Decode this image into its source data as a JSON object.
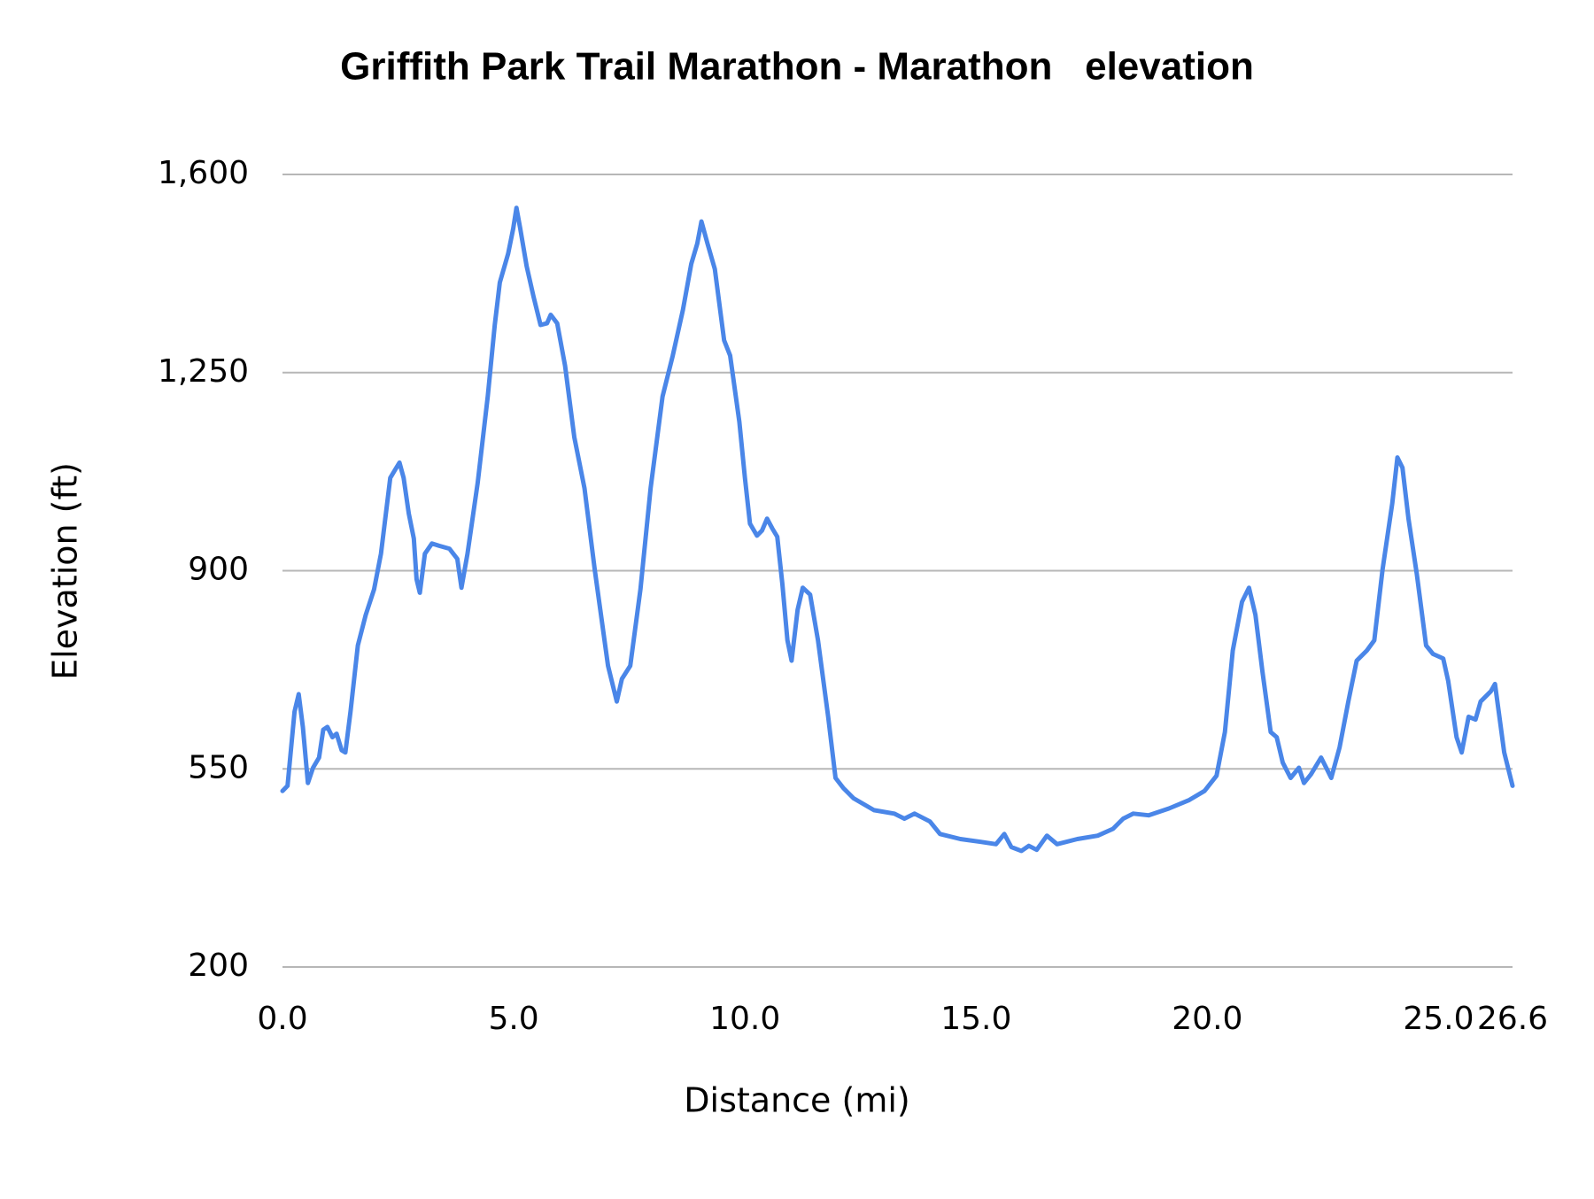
{
  "chart_data": {
    "type": "line",
    "title": "Griffith Park Trail Marathon - Marathon   elevation",
    "x_label": "Distance (mi)",
    "y_label": "Elevation (ft)",
    "x": [
      0.0,
      0.11,
      0.26,
      0.35,
      0.44,
      0.55,
      0.66,
      0.79,
      0.88,
      0.97,
      1.08,
      1.17,
      1.28,
      1.36,
      1.47,
      1.63,
      1.8,
      1.98,
      2.13,
      2.33,
      2.44,
      2.53,
      2.62,
      2.73,
      2.84,
      2.9,
      2.97,
      3.08,
      3.23,
      3.39,
      3.61,
      3.78,
      3.87,
      4.0,
      4.22,
      4.44,
      4.59,
      4.7,
      4.88,
      4.99,
      5.06,
      5.14,
      5.28,
      5.43,
      5.58,
      5.72,
      5.8,
      5.94,
      6.11,
      6.31,
      6.53,
      6.75,
      7.04,
      7.23,
      7.34,
      7.52,
      7.74,
      7.96,
      8.22,
      8.44,
      8.66,
      8.84,
      8.97,
      9.06,
      9.19,
      9.35,
      9.55,
      9.68,
      9.88,
      10.0,
      10.11,
      10.26,
      10.37,
      10.48,
      10.59,
      10.7,
      10.81,
      10.92,
      11.01,
      11.14,
      11.25,
      11.41,
      11.58,
      11.8,
      11.96,
      12.13,
      12.35,
      12.79,
      13.23,
      13.45,
      13.67,
      14.0,
      14.22,
      14.66,
      15.1,
      15.43,
      15.61,
      15.76,
      15.98,
      16.14,
      16.31,
      16.53,
      16.75,
      17.19,
      17.63,
      17.96,
      18.18,
      18.4,
      18.73,
      19.17,
      19.61,
      19.94,
      20.2,
      20.38,
      20.55,
      20.75,
      20.9,
      21.04,
      21.19,
      21.37,
      21.5,
      21.63,
      21.8,
      21.98,
      22.09,
      22.24,
      22.46,
      22.57,
      22.68,
      22.86,
      23.05,
      23.23,
      23.45,
      23.61,
      23.79,
      24.0,
      24.11,
      24.22,
      24.35,
      24.53,
      24.73,
      24.88,
      25.1,
      25.21,
      25.39,
      25.5,
      25.65,
      25.8,
      25.91,
      26.13,
      26.22,
      26.42,
      26.6
    ],
    "series": [
      {
        "name": "Elevation",
        "color": "#4a86e8",
        "values": [
          511,
          520,
          651,
          682,
          624,
          525,
          552,
          570,
          619,
          624,
          606,
          612,
          583,
          579,
          651,
          768,
          822,
          867,
          930,
          1064,
          1079,
          1091,
          1064,
          1001,
          957,
          885,
          861,
          930,
          948,
          944,
          939,
          921,
          870,
          930,
          1055,
          1208,
          1334,
          1409,
          1460,
          1505,
          1541,
          1505,
          1438,
          1384,
          1334,
          1337,
          1352,
          1337,
          1262,
          1136,
          1046,
          903,
          732,
          669,
          709,
          732,
          867,
          1046,
          1208,
          1280,
          1361,
          1442,
          1478,
          1517,
          1478,
          1433,
          1307,
          1280,
          1163,
          1064,
          983,
          962,
          971,
          992,
          975,
          960,
          876,
          777,
          741,
          831,
          870,
          858,
          777,
          642,
          534,
          516,
          498,
          477,
          471,
          462,
          471,
          457,
          435,
          426,
          421,
          417,
          435,
          412,
          405,
          414,
          407,
          432,
          417,
          426,
          432,
          444,
          462,
          471,
          468,
          480,
          495,
          511,
          538,
          615,
          759,
          845,
          870,
          822,
          723,
          615,
          606,
          561,
          534,
          552,
          525,
          540,
          570,
          552,
          534,
          588,
          669,
          741,
          759,
          777,
          903,
          1019,
          1100,
          1082,
          992,
          894,
          768,
          753,
          745,
          705,
          606,
          579,
          642,
          637,
          669,
          687,
          700,
          579,
          520
        ]
      }
    ],
    "xlim": [
      0,
      26.6
    ],
    "xticks": [
      {
        "value": 0,
        "label": "0.0"
      },
      {
        "value": 5,
        "label": "5.0"
      },
      {
        "value": 10,
        "label": "10.0"
      },
      {
        "value": 15,
        "label": "15.0"
      },
      {
        "value": 20,
        "label": "20.0"
      },
      {
        "value": 25,
        "label": "25.0"
      },
      26.6
    ],
    "ylim": [
      200,
      1600
    ],
    "yticks": [
      200,
      550,
      900,
      {
        "value": 1250,
        "label": "1,250"
      },
      {
        "value": 1600,
        "label": "1,600"
      }
    ],
    "grid": true
  }
}
